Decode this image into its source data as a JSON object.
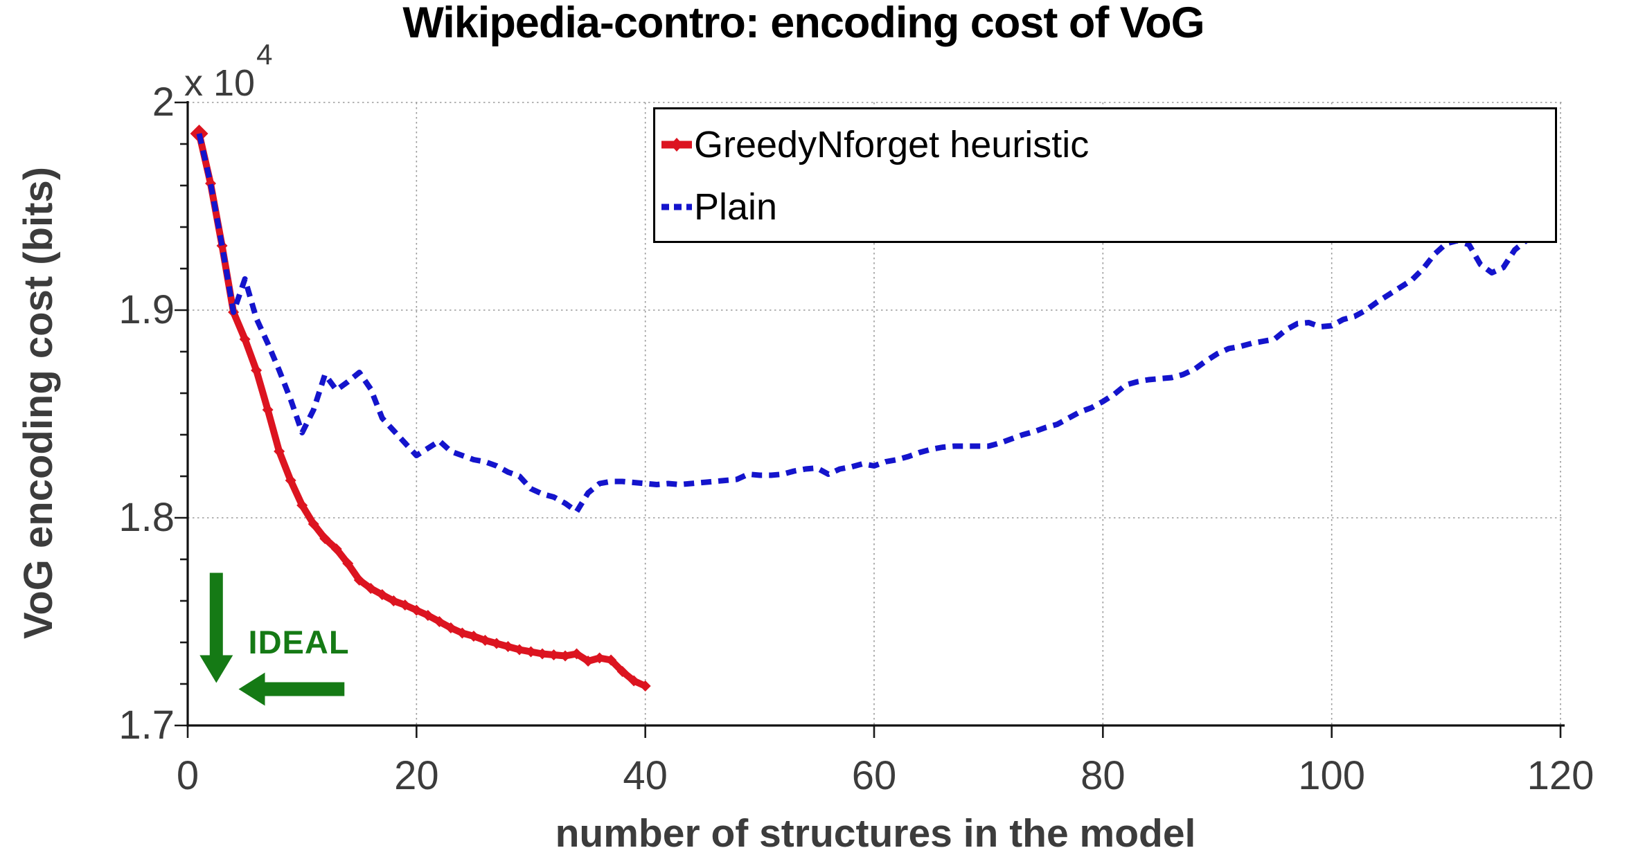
{
  "chart_data": {
    "type": "line",
    "title": "Wikipedia-contro: encoding cost of VoG",
    "xlabel": "number of structures in the model",
    "ylabel": "VoG encoding cost (bits)",
    "y_axis_multiplier": {
      "base": "x 10",
      "exponent": "4"
    },
    "y_units": "values are in units of 10^4 bits",
    "xlim": [
      0,
      120
    ],
    "ylim": [
      1.7,
      2.0
    ],
    "grid": true,
    "x_tick_labels": [
      "0",
      "20",
      "40",
      "60",
      "80",
      "100",
      "120"
    ],
    "x_tick_values": [
      0,
      20,
      40,
      60,
      80,
      100,
      120
    ],
    "y_tick_labels": [
      "2",
      "1.9",
      "1.8",
      "1.7"
    ],
    "y_tick_values": [
      2.0,
      1.9,
      1.8,
      1.7
    ],
    "y_minor_tick_step": 0.02,
    "colors": {
      "red_series": "#dc1420",
      "blue_series": "#1414cc",
      "annotation_green": "#157a15",
      "grid": "#9a9a9a",
      "axis_text": "#3c3c3c"
    },
    "legend": {
      "position": "top-right",
      "entries": [
        {
          "label": "GreedyNforget heuristic",
          "color": "#dc1420",
          "line_style": "solid",
          "marker": "diamond"
        },
        {
          "label": "Plain",
          "color": "#1414cc",
          "line_style": "dashed",
          "marker": "none"
        }
      ]
    },
    "series": [
      {
        "name": "GreedyNforget heuristic",
        "color": "#dc1420",
        "line_style": "solid",
        "marker": "diamond",
        "x": [
          1,
          2,
          3,
          4,
          5,
          6,
          7,
          8,
          9,
          10,
          11,
          12,
          13,
          14,
          15,
          16,
          17,
          18,
          19,
          20,
          21,
          22,
          23,
          24,
          25,
          26,
          27,
          28,
          29,
          30,
          31,
          32,
          33,
          34,
          35,
          36,
          37,
          38,
          39,
          40
        ],
        "y": [
          1.985,
          1.961,
          1.931,
          1.899,
          1.886,
          1.871,
          1.852,
          1.832,
          1.818,
          1.806,
          1.797,
          1.79,
          1.785,
          1.778,
          1.77,
          1.766,
          1.763,
          1.76,
          1.758,
          1.7555,
          1.753,
          1.75,
          1.747,
          1.7445,
          1.743,
          1.741,
          1.7395,
          1.738,
          1.7365,
          1.7355,
          1.7345,
          1.734,
          1.7335,
          1.7345,
          1.731,
          1.7325,
          1.7315,
          1.726,
          1.7215,
          1.719
        ]
      },
      {
        "name": "Plain",
        "color": "#1414cc",
        "line_style": "dashed",
        "marker": "none",
        "x": [
          1,
          2,
          3,
          4,
          5,
          6,
          7,
          8,
          9,
          10,
          11,
          12,
          13,
          14,
          15,
          16,
          17,
          18,
          19,
          20,
          21,
          22,
          23,
          24,
          25,
          26,
          27,
          28,
          29,
          30,
          31,
          32,
          33,
          34,
          35,
          36,
          37,
          38,
          39,
          40,
          41,
          42,
          43,
          44,
          45,
          46,
          47,
          48,
          49,
          50,
          51,
          52,
          53,
          54,
          55,
          56,
          57,
          58,
          59,
          60,
          61,
          62,
          63,
          64,
          65,
          66,
          67,
          68,
          69,
          70,
          71,
          72,
          73,
          74,
          75,
          76,
          77,
          78,
          79,
          80,
          81,
          82,
          83,
          84,
          85,
          86,
          87,
          88,
          89,
          90,
          91,
          92,
          93,
          94,
          95,
          96,
          97,
          98,
          99,
          100,
          101,
          102,
          103,
          104,
          105,
          106,
          107,
          108,
          109,
          110,
          111,
          112,
          113,
          114,
          115,
          116,
          117
        ],
        "y": [
          1.985,
          1.961,
          1.931,
          1.899,
          1.915,
          1.896,
          1.884,
          1.871,
          1.857,
          1.841,
          1.852,
          1.869,
          1.8615,
          1.8655,
          1.87,
          1.862,
          1.848,
          1.842,
          1.836,
          1.83,
          1.8335,
          1.837,
          1.832,
          1.83,
          1.828,
          1.827,
          1.825,
          1.822,
          1.82,
          1.814,
          1.8115,
          1.81,
          1.807,
          1.803,
          1.812,
          1.8165,
          1.8175,
          1.8175,
          1.817,
          1.8165,
          1.816,
          1.8165,
          1.816,
          1.8165,
          1.817,
          1.8175,
          1.818,
          1.8185,
          1.821,
          1.8205,
          1.8205,
          1.821,
          1.8225,
          1.8235,
          1.824,
          1.821,
          1.8235,
          1.8245,
          1.826,
          1.825,
          1.827,
          1.828,
          1.8295,
          1.8315,
          1.833,
          1.834,
          1.8345,
          1.8345,
          1.8345,
          1.8345,
          1.836,
          1.838,
          1.84,
          1.8415,
          1.8435,
          1.845,
          1.848,
          1.851,
          1.853,
          1.856,
          1.8595,
          1.864,
          1.8655,
          1.8665,
          1.867,
          1.8675,
          1.869,
          1.8715,
          1.8755,
          1.879,
          1.8815,
          1.8825,
          1.884,
          1.885,
          1.886,
          1.8905,
          1.8935,
          1.894,
          1.892,
          1.8925,
          1.8955,
          1.897,
          1.9,
          1.904,
          1.9075,
          1.911,
          1.9145,
          1.92,
          1.927,
          1.932,
          1.9335,
          1.9315,
          1.922,
          1.918,
          1.9205,
          1.929,
          1.9335
        ]
      }
    ],
    "annotations": [
      {
        "type": "text",
        "text": "IDEAL",
        "x": 5.3,
        "y": 1.7405,
        "color": "#157a15"
      },
      {
        "type": "arrow",
        "direction": "down",
        "x": 2.5,
        "y_start": 1.7735,
        "y_end": 1.7205,
        "color": "#157a15"
      },
      {
        "type": "arrow",
        "direction": "left",
        "y": 1.7175,
        "x_start": 13.7,
        "x_end": 4.45,
        "color": "#157a15"
      }
    ]
  }
}
